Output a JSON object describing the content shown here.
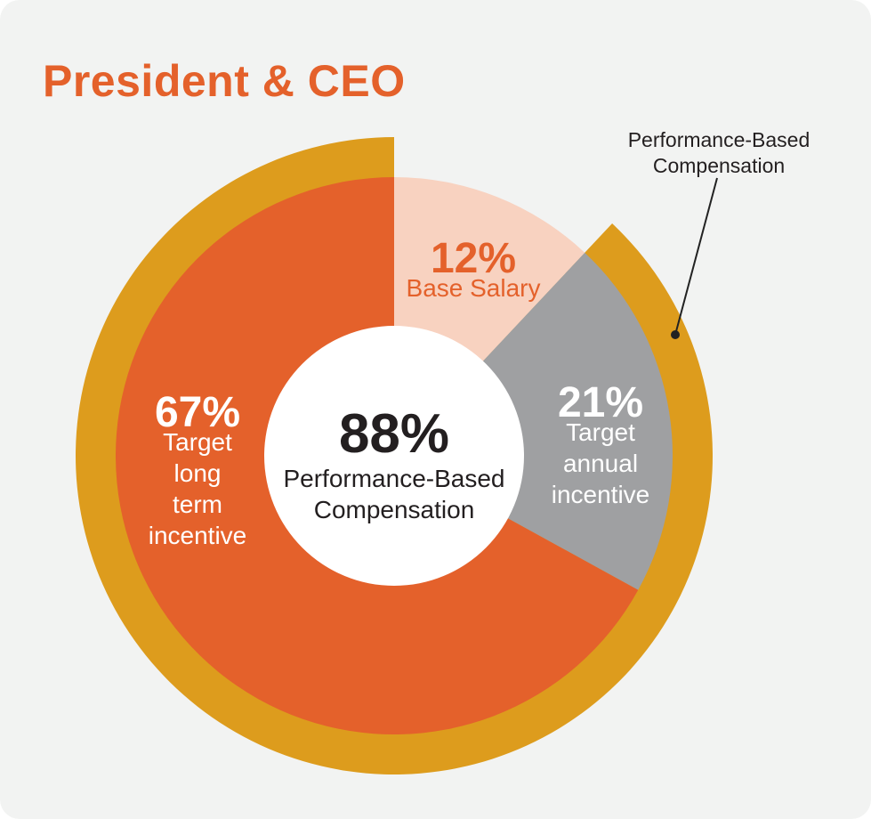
{
  "title": "President & CEO",
  "colors": {
    "background": "#f2f3f2",
    "title": "#e4612b",
    "ring": "#dd9c1d",
    "long_term": "#e4612b",
    "base": "#f8d2c0",
    "annual": "#9fa0a2",
    "center": "#ffffff",
    "callout_line": "#222222",
    "dark_text": "#231f20",
    "light_text": "#ffffff"
  },
  "chart_data": {
    "type": "pie",
    "center_label": {
      "value": "88%",
      "lines": [
        "Performance-Based",
        "Compensation"
      ]
    },
    "slices": [
      {
        "key": "base",
        "label": "Base Salary",
        "value": 12,
        "value_text": "12%",
        "label_lines": [
          "Base Salary"
        ]
      },
      {
        "key": "annual",
        "label": "Target annual incentive",
        "value": 21,
        "value_text": "21%",
        "label_lines": [
          "Target",
          "annual",
          "incentive"
        ]
      },
      {
        "key": "long_term",
        "label": "Target long term incentive",
        "value": 67,
        "value_text": "67%",
        "label_lines": [
          "Target",
          "long",
          "term",
          "incentive"
        ]
      }
    ],
    "outer_ring": {
      "label_lines": [
        "Performance-Based",
        "Compensation"
      ],
      "covers": [
        "annual",
        "long_term"
      ],
      "value": 88
    }
  }
}
